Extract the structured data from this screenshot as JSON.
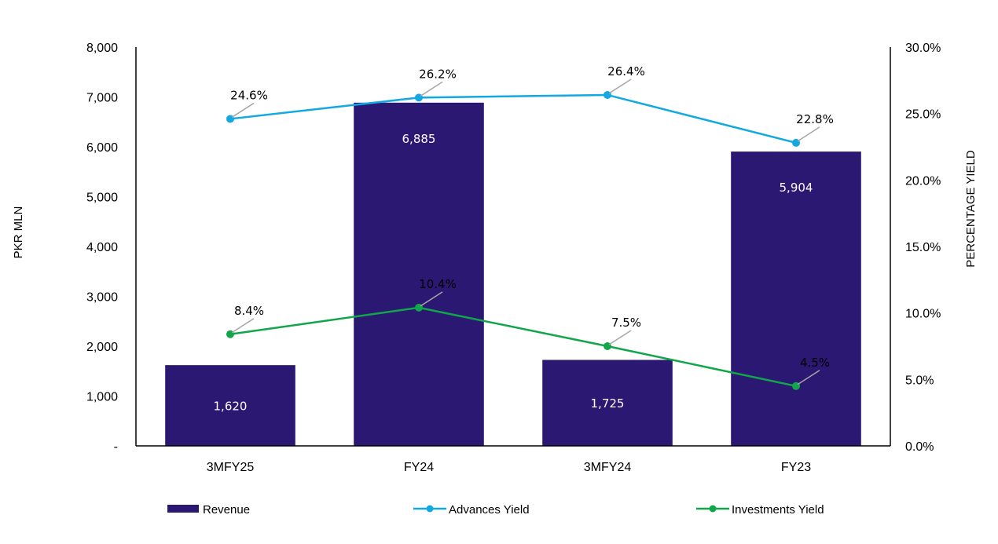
{
  "chart_data": {
    "type": "bar",
    "categories": [
      "3MFY25",
      "FY24",
      "3MFY24",
      "FY23"
    ],
    "series": [
      {
        "name": "Revenue",
        "type": "bar",
        "axis": "left",
        "color": "#2B1872",
        "values": [
          1620,
          6885,
          1725,
          5904
        ],
        "labels": [
          "1,620",
          "6,885",
          "1,725",
          "5,904"
        ]
      },
      {
        "name": "Advances Yield",
        "type": "line",
        "axis": "right",
        "color": "#12A9E2",
        "values": [
          24.6,
          26.2,
          26.4,
          22.8
        ],
        "labels": [
          "24.6%",
          "26.2%",
          "26.4%",
          "22.8%"
        ]
      },
      {
        "name": "Investments Yield",
        "type": "line",
        "axis": "right",
        "color": "#12A64B",
        "values": [
          8.4,
          10.4,
          7.5,
          4.5
        ],
        "labels": [
          "8.4%",
          "10.4%",
          "7.5%",
          "4.5%"
        ]
      }
    ],
    "ylabel": "PKR MLN",
    "y2label": "PERCENTAGE YIELD",
    "ylim": [
      0,
      8000
    ],
    "y2lim": [
      0,
      30
    ],
    "yticks": [
      "-",
      "1,000",
      "2,000",
      "3,000",
      "4,000",
      "5,000",
      "6,000",
      "7,000",
      "8,000"
    ],
    "y2ticks": [
      "0.0%",
      "5.0%",
      "10.0%",
      "15.0%",
      "20.0%",
      "25.0%",
      "30.0%"
    ],
    "grid": false,
    "legend_position": "bottom",
    "leader_color": "#A6A6A6"
  }
}
